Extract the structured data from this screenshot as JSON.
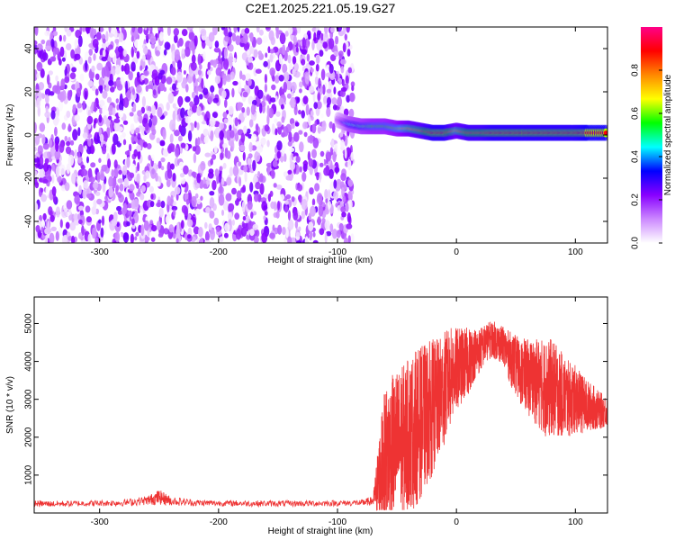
{
  "title": "C2E1.2025.221.05.19.G27",
  "chart_data": [
    {
      "type": "heatmap",
      "xlabel": "Height of straight line (km)",
      "ylabel": "Frequency (Hz)",
      "xlim": [
        -355,
        127
      ],
      "ylim": [
        -50,
        50
      ],
      "xticks": [
        -300,
        -200,
        -100,
        0,
        100
      ],
      "yticks": [
        -40,
        -20,
        0,
        20,
        40
      ],
      "colorbar": {
        "label": "Normalized spectral amplitude",
        "range": [
          0,
          1
        ],
        "ticks": [
          "0.0",
          "0.2",
          "0.4",
          "0.6",
          "0.8"
        ],
        "colors": [
          "#ffffff",
          "#cc88ff",
          "#8800ff",
          "#0000ff",
          "#00ffff",
          "#00ff00",
          "#ffff00",
          "#ff8800",
          "#ff0000",
          "#ff0088"
        ]
      },
      "noise_region": {
        "x": [
          -355,
          -87
        ],
        "y": [
          -50,
          50
        ],
        "amplitude": [
          0.0,
          0.25
        ]
      },
      "signal_track": {
        "x": [
          -100,
          -90,
          -80,
          -70,
          -60,
          -50,
          -40,
          -30,
          -20,
          -10,
          0,
          10,
          20,
          30,
          40,
          50,
          60,
          70,
          80,
          90,
          100,
          110,
          127
        ],
        "y": [
          7,
          5,
          4,
          4,
          4,
          3,
          3,
          2,
          1,
          1,
          2,
          1,
          1,
          1,
          1,
          1,
          1,
          1,
          1,
          1,
          1,
          1,
          1
        ],
        "amplitude": [
          0.2,
          0.45,
          0.5,
          0.55,
          0.55,
          0.6,
          0.7,
          0.75,
          0.85,
          0.85,
          0.7,
          0.8,
          0.8,
          0.85,
          0.85,
          0.85,
          0.85,
          0.85,
          0.85,
          0.85,
          0.85,
          0.9,
          0.9
        ]
      }
    },
    {
      "type": "line",
      "xlabel": "Height of straight line (km)",
      "ylabel": "SNR (10 * v/v)",
      "xlim": [
        -355,
        127
      ],
      "ylim": [
        0,
        5700
      ],
      "xticks": [
        -300,
        -200,
        -100,
        0,
        100
      ],
      "yticks": [
        1000,
        2000,
        3000,
        4000,
        5000
      ],
      "color": "#ee3333",
      "series": [
        {
          "x": [
            -355,
            -340,
            -320,
            -300,
            -280,
            -260,
            -250,
            -240,
            -220,
            -200,
            -180,
            -160,
            -140,
            -120,
            -100,
            -80,
            -70,
            -65,
            -60,
            -55,
            -50,
            -45,
            -40,
            -35,
            -30,
            -25,
            -20,
            -15,
            -10,
            -5,
            0,
            5,
            10,
            15,
            20,
            25,
            30,
            35,
            40,
            45,
            50,
            55,
            60,
            65,
            70,
            75,
            80,
            85,
            90,
            95,
            100,
            105,
            110,
            115,
            120,
            127
          ],
          "y": [
            250,
            240,
            250,
            260,
            270,
            330,
            420,
            320,
            270,
            260,
            255,
            250,
            250,
            255,
            260,
            270,
            320,
            900,
            1500,
            1700,
            1900,
            1900,
            2100,
            2200,
            2400,
            2600,
            2800,
            3000,
            3300,
            3600,
            3800,
            3900,
            4000,
            4200,
            4300,
            4500,
            4600,
            4500,
            4400,
            4100,
            3900,
            3700,
            3600,
            3500,
            3400,
            3300,
            3300,
            3200,
            3100,
            3000,
            3000,
            2900,
            2800,
            2800,
            2700,
            2700
          ],
          "spread": [
            80,
            80,
            80,
            80,
            90,
            120,
            200,
            120,
            90,
            80,
            80,
            80,
            80,
            80,
            80,
            80,
            120,
            1200,
            1800,
            1900,
            1900,
            2000,
            2000,
            2100,
            2000,
            1900,
            1800,
            1600,
            1500,
            1300,
            1100,
            1000,
            900,
            700,
            600,
            500,
            500,
            500,
            500,
            700,
            800,
            900,
            1000,
            1100,
            1200,
            1300,
            1300,
            1200,
            1100,
            1000,
            900,
            800,
            700,
            600,
            500,
            400
          ]
        }
      ]
    }
  ]
}
